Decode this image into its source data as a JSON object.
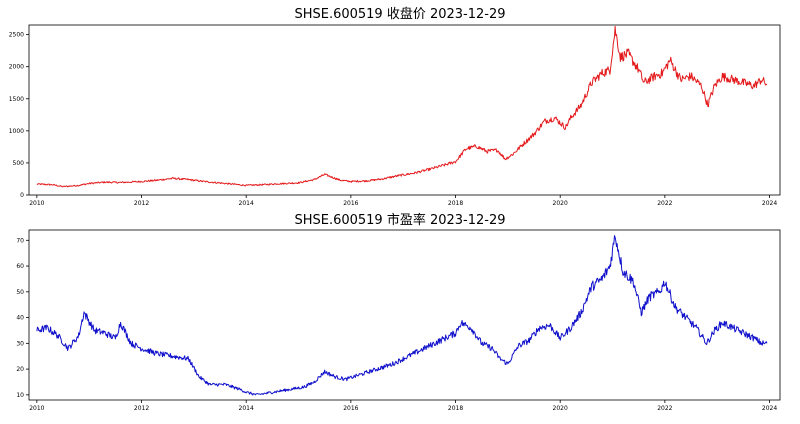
{
  "colors": {
    "price": "#e41a1c",
    "pe": "#1010cc"
  },
  "chart_data": [
    {
      "type": "line",
      "title": "SHSE.600519 收盘价 2023-12-29",
      "xlabel": "",
      "ylabel": "",
      "xlim": [
        2009.85,
        2024.2
      ],
      "ylim": [
        0,
        2650
      ],
      "x_ticks": [
        2010,
        2012,
        2014,
        2016,
        2018,
        2020,
        2022,
        2024
      ],
      "x_tick_labels": [
        "2010",
        "2012",
        "2014",
        "2016",
        "2018",
        "2020",
        "2022",
        "2024"
      ],
      "y_ticks": [
        0,
        500,
        1000,
        1500,
        2000,
        2500
      ],
      "y_tick_labels": [
        "0",
        "500",
        "1000",
        "1500",
        "2000",
        "2500"
      ],
      "grid": false,
      "series": [
        {
          "x": [
            2010.0,
            2010.3,
            2010.5,
            2010.8,
            2011.0,
            2011.3,
            2011.6,
            2012.0,
            2012.3,
            2012.6,
            2012.9,
            2013.2,
            2013.6,
            2014.0,
            2014.3,
            2014.6,
            2015.0,
            2015.3,
            2015.5,
            2015.8,
            2016.0,
            2016.3,
            2016.6,
            2016.9,
            2017.2,
            2017.5,
            2017.8,
            2018.0,
            2018.2,
            2018.4,
            2018.6,
            2018.8,
            2018.95,
            2019.1,
            2019.3,
            2019.5,
            2019.7,
            2019.9,
            2020.1,
            2020.2,
            2020.4,
            2020.6,
            2020.8,
            2020.95,
            2021.05,
            2021.15,
            2021.3,
            2021.5,
            2021.6,
            2021.8,
            2021.95,
            2022.1,
            2022.3,
            2022.5,
            2022.7,
            2022.82,
            2022.95,
            2023.1,
            2023.3,
            2023.5,
            2023.7,
            2023.85,
            2023.95
          ],
          "y": [
            170,
            160,
            130,
            150,
            180,
            200,
            195,
            210,
            230,
            260,
            240,
            210,
            180,
            150,
            160,
            175,
            190,
            240,
            320,
            230,
            210,
            220,
            250,
            300,
            340,
            400,
            470,
            520,
            720,
            760,
            680,
            700,
            560,
            640,
            800,
            950,
            1150,
            1200,
            1050,
            1200,
            1400,
            1750,
            1900,
            1950,
            2580,
            2150,
            2200,
            1950,
            1750,
            1850,
            1900,
            2100,
            1800,
            1850,
            1700,
            1400,
            1700,
            1850,
            1800,
            1750,
            1700,
            1800,
            1720
          ]
        }
      ]
    },
    {
      "type": "line",
      "title": "SHSE.600519 市盈率 2023-12-29",
      "xlabel": "",
      "ylabel": "",
      "xlim": [
        2009.85,
        2024.2
      ],
      "ylim": [
        8,
        74
      ],
      "x_ticks": [
        2010,
        2012,
        2014,
        2016,
        2018,
        2020,
        2022,
        2024
      ],
      "x_tick_labels": [
        "2010",
        "2012",
        "2014",
        "2016",
        "2018",
        "2020",
        "2022",
        "2024"
      ],
      "y_ticks": [
        10,
        20,
        30,
        40,
        50,
        60,
        70
      ],
      "y_tick_labels": [
        "10",
        "20",
        "30",
        "40",
        "50",
        "60",
        "70"
      ],
      "grid": false,
      "series": [
        {
          "x": [
            2010.0,
            2010.2,
            2010.4,
            2010.6,
            2010.8,
            2010.9,
            2011.1,
            2011.3,
            2011.5,
            2011.6,
            2011.8,
            2012.0,
            2012.3,
            2012.6,
            2012.9,
            2013.1,
            2013.3,
            2013.6,
            2013.9,
            2014.0,
            2014.2,
            2014.5,
            2014.8,
            2015.1,
            2015.3,
            2015.5,
            2015.7,
            2015.9,
            2016.2,
            2016.5,
            2016.8,
            2017.1,
            2017.4,
            2017.7,
            2018.0,
            2018.1,
            2018.3,
            2018.5,
            2018.7,
            2018.85,
            2019.0,
            2019.2,
            2019.4,
            2019.6,
            2019.8,
            2020.0,
            2020.2,
            2020.4,
            2020.6,
            2020.8,
            2020.95,
            2021.05,
            2021.2,
            2021.4,
            2021.55,
            2021.7,
            2021.9,
            2022.0,
            2022.2,
            2022.4,
            2022.6,
            2022.8,
            2022.95,
            2023.1,
            2023.3,
            2023.5,
            2023.7,
            2023.85,
            2023.95
          ],
          "y": [
            35,
            36,
            33,
            28,
            33,
            42,
            35,
            34,
            32,
            38,
            30,
            28,
            26,
            25,
            24,
            17,
            14,
            14,
            12,
            11,
            10,
            11,
            12,
            13,
            15,
            19,
            17,
            16,
            18,
            20,
            22,
            25,
            28,
            31,
            34,
            38,
            36,
            30,
            28,
            24,
            22,
            29,
            31,
            36,
            37,
            32,
            36,
            42,
            52,
            55,
            60,
            72,
            58,
            54,
            42,
            48,
            50,
            54,
            44,
            40,
            36,
            30,
            35,
            38,
            36,
            34,
            32,
            30,
            30
          ]
        }
      ]
    }
  ]
}
